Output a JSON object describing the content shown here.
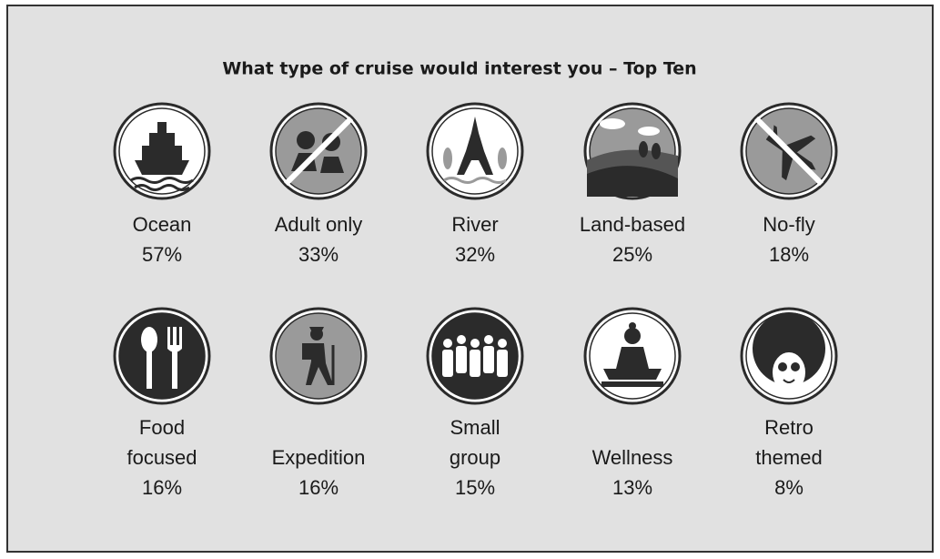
{
  "title": "What type of cruise would interest you – Top Ten",
  "items": [
    {
      "label": [
        "Ocean"
      ],
      "percent": "57%"
    },
    {
      "label": [
        "Adult only"
      ],
      "percent": "33%"
    },
    {
      "label": [
        "River"
      ],
      "percent": "32%"
    },
    {
      "label": [
        "Land-based"
      ],
      "percent": "25%"
    },
    {
      "label": [
        "No-fly"
      ],
      "percent": "18%"
    },
    {
      "label": [
        "Food",
        "focused"
      ],
      "percent": "16%"
    },
    {
      "label": [
        "Expedition"
      ],
      "percent": "16%"
    },
    {
      "label": [
        "Small",
        "group"
      ],
      "percent": "15%"
    },
    {
      "label": [
        "Wellness"
      ],
      "percent": "13%"
    },
    {
      "label": [
        "Retro",
        "themed"
      ],
      "percent": "8%"
    }
  ]
}
